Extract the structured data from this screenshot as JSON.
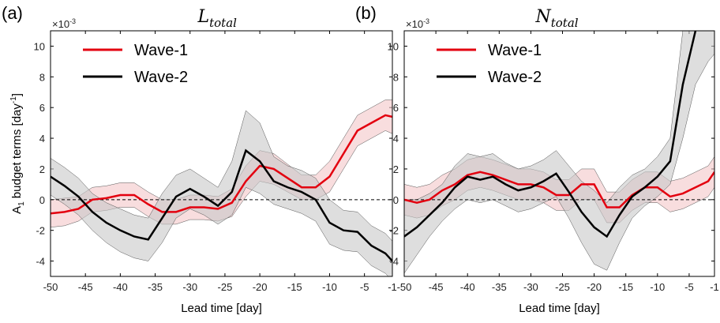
{
  "chart_data": [
    {
      "type": "line",
      "panel_label": "(a)",
      "title": "L",
      "title_subscript": "total",
      "exponent_base": "×10",
      "exponent_power": "-3",
      "xlabel": "Lead time [day]",
      "ylabel_parts": [
        "A",
        "1",
        " budget terms [day",
        "-1",
        "]"
      ],
      "ylabel_shifts": [
        "none",
        "sub",
        "none",
        "super",
        "none"
      ],
      "x": [
        -50,
        -48,
        -46,
        -44,
        -42,
        -40,
        -38,
        -36,
        -34,
        -32,
        -30,
        -28,
        -26,
        -24,
        -22,
        -20,
        -18,
        -16,
        -14,
        -12,
        -10,
        -8,
        -6,
        -4,
        -2,
        -1
      ],
      "xlim": [
        -50,
        -1
      ],
      "xticks": [
        -50,
        -45,
        -40,
        -35,
        -30,
        -25,
        -20,
        -15,
        -10,
        -5,
        -1
      ],
      "ylim": [
        -5,
        11
      ],
      "yticks": [
        -4,
        -2,
        0,
        2,
        4,
        6,
        8,
        10
      ],
      "hline": 0,
      "legend": "upper left",
      "series": [
        {
          "name": "Wave-1",
          "color": "#e3000f",
          "band_color": "#f4c6c8",
          "values": [
            -0.9,
            -0.8,
            -0.6,
            0,
            0.1,
            0.3,
            0.3,
            -0.3,
            -0.8,
            -0.8,
            -0.5,
            -0.5,
            -0.6,
            -0.2,
            1.2,
            2.2,
            2.0,
            1.4,
            0.8,
            0.8,
            1.5,
            3.0,
            4.5,
            5.0,
            5.5,
            5.4
          ],
          "lower": [
            -1.8,
            -1.7,
            -1.4,
            -0.8,
            -0.7,
            -0.5,
            -0.5,
            -1.1,
            -1.6,
            -1.6,
            -1.3,
            -1.3,
            -1.4,
            -1.1,
            0.2,
            1.2,
            1.0,
            0.5,
            0,
            0,
            0.5,
            2.0,
            3.5,
            4.0,
            4.5,
            4.3
          ],
          "upper": [
            0,
            0.1,
            0.2,
            0.8,
            0.9,
            1.1,
            1.1,
            0.5,
            0,
            0,
            0.3,
            0.3,
            0.2,
            0.7,
            2.2,
            3.2,
            3.0,
            2.3,
            1.6,
            1.6,
            2.5,
            4.0,
            5.5,
            6.0,
            6.5,
            6.5
          ]
        },
        {
          "name": "Wave-2",
          "color": "#000000",
          "band_color": "#c8c8c8",
          "values": [
            1.5,
            0.9,
            0.2,
            -0.8,
            -1.5,
            -2.0,
            -2.4,
            -2.6,
            -1.2,
            0.2,
            0.7,
            0.2,
            -0.4,
            0.5,
            3.2,
            2.5,
            1.2,
            0.8,
            0.5,
            0,
            -1.5,
            -2.0,
            -2.1,
            -3.0,
            -3.5,
            -4.0
          ],
          "lower": [
            0.3,
            -0.3,
            -1.0,
            -2.0,
            -2.8,
            -3.4,
            -3.8,
            -4.0,
            -2.8,
            -1.2,
            -0.6,
            -1.0,
            -1.6,
            -1.0,
            0.8,
            0.4,
            -0.3,
            -0.6,
            -0.9,
            -1.4,
            -2.9,
            -3.3,
            -3.4,
            -4.3,
            -4.8,
            -5.3
          ],
          "upper": [
            2.7,
            2.1,
            1.4,
            0.4,
            -0.2,
            -0.6,
            -1.0,
            -1.2,
            0.4,
            1.6,
            2.0,
            1.4,
            0.8,
            2.5,
            5.8,
            5.0,
            2.8,
            2.2,
            1.9,
            1.4,
            0,
            -0.7,
            -0.8,
            -1.7,
            -2.2,
            -2.7
          ]
        }
      ]
    },
    {
      "type": "line",
      "panel_label": "(b)",
      "title": "N",
      "title_subscript": "total",
      "exponent_base": "×10",
      "exponent_power": "-3",
      "xlabel": "Lead time [day]",
      "x": [
        -50,
        -48,
        -46,
        -44,
        -42,
        -40,
        -38,
        -36,
        -34,
        -32,
        -30,
        -28,
        -26,
        -24,
        -22,
        -20,
        -18,
        -16,
        -14,
        -12,
        -10,
        -8,
        -6,
        -4,
        -2,
        -1
      ],
      "xlim": [
        -50,
        -1
      ],
      "xticks": [
        -50,
        -45,
        -40,
        -35,
        -30,
        -25,
        -20,
        -15,
        -10,
        -5,
        -1
      ],
      "ylim": [
        -5,
        11
      ],
      "yticks": [
        -4,
        -2,
        0,
        2,
        4,
        6,
        8,
        10
      ],
      "hline": 0,
      "legend": "upper left",
      "series": [
        {
          "name": "Wave-1",
          "color": "#e3000f",
          "band_color": "#f4c6c8",
          "values": [
            0,
            -0.2,
            0,
            0.6,
            1.0,
            1.6,
            1.8,
            1.6,
            1.3,
            1.0,
            1.0,
            0.8,
            0.3,
            0.3,
            1.0,
            1.0,
            -0.5,
            -0.5,
            0.3,
            0.8,
            0.8,
            0.2,
            0.4,
            0.8,
            1.2,
            1.8
          ],
          "lower": [
            -1.0,
            -1.2,
            -1.0,
            -0.4,
            0,
            0.6,
            0.8,
            0.6,
            0.3,
            0,
            0,
            -0.2,
            -0.7,
            -0.7,
            0,
            0,
            -1.5,
            -1.5,
            -0.7,
            -0.2,
            -0.2,
            -0.8,
            -0.6,
            -0.2,
            0.2,
            0.8
          ],
          "upper": [
            1.0,
            0.8,
            1.0,
            1.6,
            2.0,
            2.6,
            2.8,
            2.6,
            2.3,
            2.0,
            2.0,
            1.8,
            1.3,
            1.3,
            2.0,
            2.0,
            0.5,
            0.5,
            1.3,
            1.8,
            1.8,
            1.2,
            1.4,
            1.8,
            2.2,
            2.8
          ]
        },
        {
          "name": "Wave-2",
          "color": "#000000",
          "band_color": "#c8c8c8",
          "values": [
            -2.4,
            -1.8,
            -1.0,
            -0.2,
            0.8,
            1.5,
            1.3,
            1.5,
            1.0,
            0.6,
            0.8,
            1.2,
            1.7,
            0.5,
            -0.8,
            -1.8,
            -2.4,
            -1.0,
            0.2,
            0.8,
            1.5,
            2.5,
            7.5,
            11,
            12,
            12
          ],
          "lower": [
            -4.8,
            -3.6,
            -2.4,
            -1.4,
            -0.6,
            0,
            -0.2,
            0,
            -0.4,
            -0.8,
            -0.6,
            -0.2,
            0.2,
            -1.2,
            -2.8,
            -4.2,
            -4.6,
            -2.8,
            -1.2,
            -0.4,
            0.2,
            1.0,
            4.0,
            7.5,
            9,
            9.5
          ],
          "upper": [
            0,
            0,
            0.4,
            1.0,
            2.2,
            3.0,
            2.8,
            3.0,
            2.4,
            2.0,
            2.2,
            2.6,
            3.2,
            2.2,
            1.2,
            0.6,
            -0.2,
            0.8,
            1.6,
            2.0,
            2.8,
            4.0,
            11,
            14,
            15,
            15
          ]
        }
      ]
    }
  ]
}
